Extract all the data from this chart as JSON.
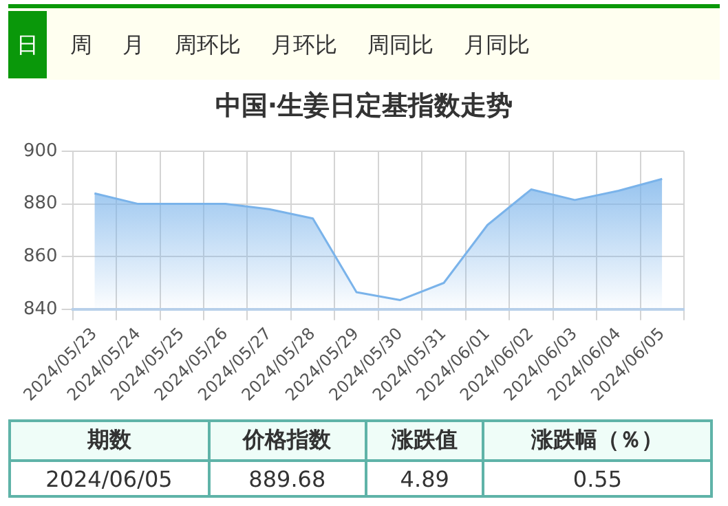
{
  "chart_data": [
    {
      "type": "other",
      "annotations": [
        "日",
        "周",
        "月",
        "周环比",
        "月环比",
        "周同比",
        "月同比"
      ]
    },
    {
      "type": "area",
      "title": "中国·生姜日定基指数走势",
      "categories": [
        "2024/05/23",
        "2024/05/24",
        "2024/05/25",
        "2024/05/26",
        "2024/05/27",
        "2024/05/28",
        "2024/05/29",
        "2024/05/30",
        "2024/05/31",
        "2024/06/01",
        "2024/06/02",
        "2024/06/03",
        "2024/06/04",
        "2024/06/05"
      ],
      "series": [
        {
          "color": "#7ab3ea",
          "values": [
            884,
            880,
            880,
            880,
            878,
            874.5,
            846.5,
            843.5,
            850,
            872,
            885.5,
            881.5,
            885,
            889.5
          ]
        }
      ],
      "ylim": [
        840,
        900
      ],
      "yticks": [
        840,
        860,
        880,
        900
      ],
      "grid": true,
      "legend": false,
      "marker": "none"
    },
    {
      "type": "other",
      "annotations": [
        "期数",
        "价格指数",
        "涨跌值",
        "涨跌幅（％）",
        "2024/06/05",
        "889.68",
        "4.89",
        "0.55"
      ]
    }
  ]
}
